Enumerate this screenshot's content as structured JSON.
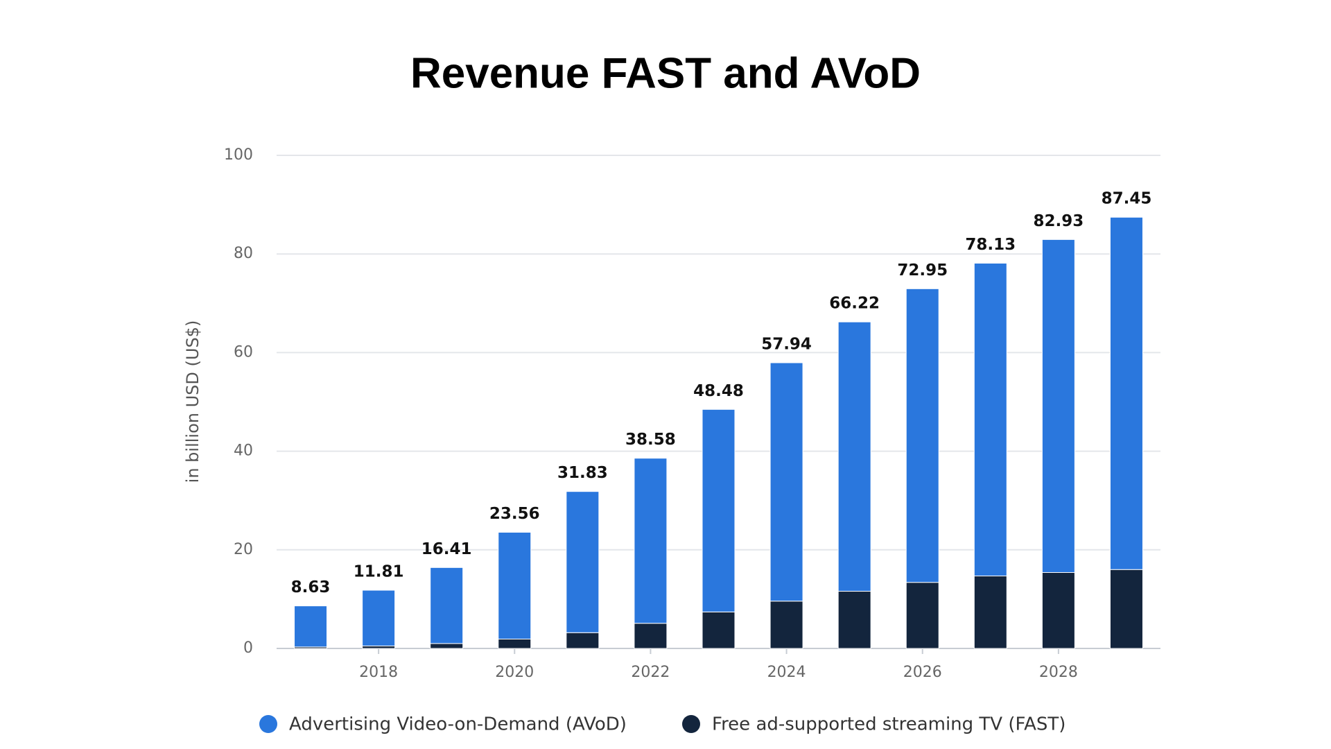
{
  "chart_data": {
    "type": "stacked_bar",
    "title": "Revenue FAST and AVoD",
    "y_label": "in billion USD (US$)",
    "categories": [
      null,
      "2018",
      null,
      "2020",
      null,
      "2022",
      null,
      "2024",
      null,
      "2026",
      null,
      "2028",
      null
    ],
    "series": [
      {
        "name": "Free ad-supported streaming TV (FAST)",
        "color": "#13253d",
        "values": [
          0.3,
          0.5,
          1.0,
          1.9,
          3.2,
          5.1,
          7.4,
          9.6,
          11.6,
          13.4,
          14.7,
          15.4,
          16.0
        ]
      },
      {
        "name": "Advertising Video-on-Demand (AVoD)",
        "color": "#2a77dd",
        "values": [
          8.33,
          11.31,
          15.41,
          21.66,
          28.63,
          33.48,
          41.08,
          48.34,
          54.62,
          59.55,
          63.43,
          67.53,
          71.45
        ]
      }
    ],
    "totals": [
      8.63,
      11.81,
      16.41,
      23.56,
      31.83,
      38.58,
      48.48,
      57.94,
      66.22,
      72.95,
      78.13,
      82.93,
      87.45
    ],
    "legend_order": [
      1,
      0
    ],
    "ylim": [
      0,
      100
    ],
    "yticks": [
      0,
      20,
      40,
      60,
      80,
      100
    ],
    "grid": true
  }
}
